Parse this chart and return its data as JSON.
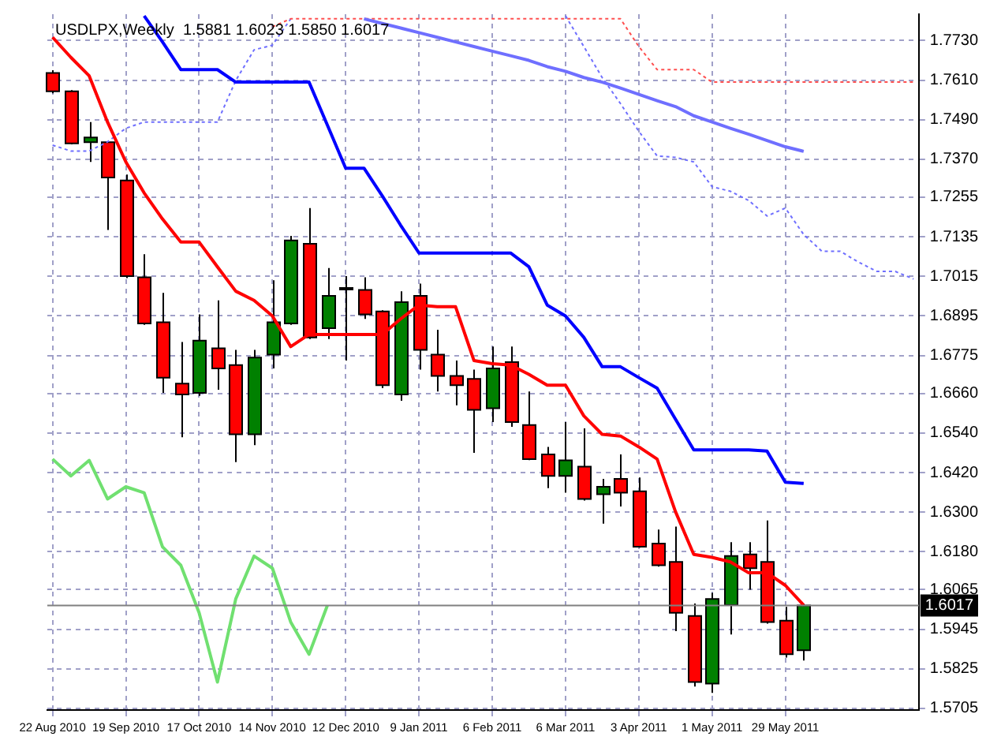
{
  "chart_data": {
    "type": "candlestick",
    "title": "USDLPX,Weekly  1.5881 1.6023 1.5850 1.6017",
    "x": [
      "2010-08-22",
      "2010-08-29",
      "2010-09-05",
      "2010-09-12",
      "2010-09-19",
      "2010-09-26",
      "2010-10-03",
      "2010-10-10",
      "2010-10-17",
      "2010-10-24",
      "2010-10-31",
      "2010-11-07",
      "2010-11-14",
      "2010-11-21",
      "2010-11-28",
      "2010-12-05",
      "2010-12-12",
      "2010-12-19",
      "2010-12-26",
      "2011-01-02",
      "2011-01-09",
      "2011-01-16",
      "2011-01-23",
      "2011-01-30",
      "2011-02-06",
      "2011-02-13",
      "2011-02-20",
      "2011-02-27",
      "2011-03-06",
      "2011-03-13",
      "2011-03-20",
      "2011-03-27",
      "2011-04-03",
      "2011-04-10",
      "2011-04-17",
      "2011-04-24",
      "2011-05-01",
      "2011-05-08",
      "2011-05-15",
      "2011-05-22",
      "2011-05-29",
      "2011-06-05"
    ],
    "ohlc": [
      [
        1.7632,
        1.764,
        1.757,
        1.7576
      ],
      [
        1.7576,
        1.758,
        1.7415,
        1.7418
      ],
      [
        1.7422,
        1.7483,
        1.7362,
        1.7436
      ],
      [
        1.7422,
        1.7425,
        1.7156,
        1.7315
      ],
      [
        1.7306,
        1.7324,
        1.701,
        1.7016
      ],
      [
        1.7012,
        1.7082,
        1.6868,
        1.6872
      ],
      [
        1.6876,
        1.6965,
        1.6662,
        1.6708
      ],
      [
        1.669,
        1.6816,
        1.6527,
        1.6657
      ],
      [
        1.6662,
        1.69,
        1.6653,
        1.682
      ],
      [
        1.6797,
        1.6942,
        1.6671,
        1.6736
      ],
      [
        1.6746,
        1.6792,
        1.6452,
        1.6536
      ],
      [
        1.6536,
        1.6792,
        1.6503,
        1.6769
      ],
      [
        1.6778,
        1.7003,
        1.6736,
        1.6876
      ],
      [
        1.6872,
        1.7138,
        1.6868,
        1.7124
      ],
      [
        1.7114,
        1.7222,
        1.6825,
        1.683
      ],
      [
        1.6858,
        1.704,
        1.6825,
        1.6956
      ],
      [
        1.698,
        1.7016,
        1.676,
        1.6979
      ],
      [
        1.6974,
        1.7012,
        1.6886,
        1.69
      ],
      [
        1.6909,
        1.6912,
        1.6676,
        1.6685
      ],
      [
        1.6657,
        1.697,
        1.6638,
        1.6937
      ],
      [
        1.6956,
        1.6993,
        1.6732,
        1.6792
      ],
      [
        1.6778,
        1.6853,
        1.6666,
        1.6713
      ],
      [
        1.6713,
        1.676,
        1.6624,
        1.6685
      ],
      [
        1.6704,
        1.6732,
        1.648,
        1.661
      ],
      [
        1.6615,
        1.6802,
        1.6573,
        1.6736
      ],
      [
        1.6755,
        1.6802,
        1.6559,
        1.6573
      ],
      [
        1.6564,
        1.6666,
        1.6458,
        1.6461
      ],
      [
        1.6475,
        1.6498,
        1.6373,
        1.641
      ],
      [
        1.641,
        1.6573,
        1.6359,
        1.6457
      ],
      [
        1.6438,
        1.6554,
        1.6335,
        1.634
      ],
      [
        1.6354,
        1.6401,
        1.6265,
        1.6377
      ],
      [
        1.6401,
        1.6475,
        1.6317,
        1.6359
      ],
      [
        1.6363,
        1.6405,
        1.6192,
        1.6195
      ],
      [
        1.6205,
        1.6247,
        1.6135,
        1.6139
      ],
      [
        1.6149,
        1.6256,
        1.5939,
        1.5995
      ],
      [
        1.5985,
        1.6023,
        1.5771,
        1.5785
      ],
      [
        1.578,
        1.6055,
        1.5752,
        1.6037
      ],
      [
        1.6018,
        1.6209,
        1.5929,
        1.6167
      ],
      [
        1.6172,
        1.6209,
        1.6065,
        1.613
      ],
      [
        1.6149,
        1.6275,
        1.5962,
        1.5967
      ],
      [
        1.5971,
        1.6013,
        1.5859,
        1.5869
      ],
      [
        1.5881,
        1.6023,
        1.585,
        1.6017
      ]
    ],
    "colors": [
      "#ff0000",
      "#ff0000",
      "#008000",
      "#ff0000",
      "#ff0000",
      "#ff0000",
      "#ff0000",
      "#ff0000",
      "#008000",
      "#ff0000",
      "#ff0000",
      "#008000",
      "#008000",
      "#008000",
      "#ff0000",
      "#008000",
      "#ff0000",
      "#ff0000",
      "#ff0000",
      "#008000",
      "#ff0000",
      "#ff0000",
      "#ff0000",
      "#ff0000",
      "#008000",
      "#ff0000",
      "#ff0000",
      "#ff0000",
      "#008000",
      "#ff0000",
      "#008000",
      "#ff0000",
      "#ff0000",
      "#ff0000",
      "#ff0000",
      "#ff0000",
      "#008000",
      "#008000",
      "#ff0000",
      "#ff0000",
      "#ff0000",
      "#008000"
    ],
    "series": [
      {
        "type": "line",
        "color": "#ff0000",
        "line_style": "solid",
        "values": [
          1.774,
          1.7679,
          1.7623,
          1.7483,
          1.7362,
          1.7268,
          1.7189,
          1.7119,
          1.7119,
          1.7044,
          1.697,
          1.6942,
          1.6895,
          1.6802,
          1.6839,
          1.6839,
          1.6839,
          1.6839,
          1.6839,
          1.6886,
          1.6928,
          1.6923,
          1.6923,
          1.676,
          1.675,
          1.6746,
          1.6718,
          1.6685,
          1.6685,
          1.6592,
          1.6536,
          1.6531,
          1.6498,
          1.6461,
          1.6302,
          1.6172,
          1.6163,
          1.6149,
          1.6116,
          1.6116,
          1.6078,
          1.6018
        ]
      },
      {
        "type": "line",
        "color": "#0000ff",
        "line_style": "solid",
        "values": [
          null,
          null,
          null,
          null,
          null,
          1.7805,
          1.7726,
          1.7642,
          1.7642,
          1.7642,
          1.7604,
          1.7604,
          1.7604,
          1.7604,
          1.7604,
          1.7474,
          1.7343,
          1.7343,
          1.7259,
          1.717,
          1.7086,
          1.7086,
          1.7086,
          1.7086,
          1.7086,
          1.7086,
          1.7044,
          1.6928,
          1.6895,
          1.683,
          1.6741,
          1.6741,
          1.6708,
          1.6676,
          1.6582,
          1.6489,
          1.6489,
          1.6489,
          1.6489,
          1.6485,
          1.6391,
          1.6387
        ]
      },
      {
        "type": "line",
        "color": "#6f6fff",
        "line_style": "solid",
        "values": [
          null,
          null,
          null,
          null,
          null,
          null,
          null,
          null,
          null,
          null,
          null,
          null,
          null,
          null,
          null,
          null,
          null,
          1.7796,
          1.7782,
          1.7768,
          1.7754,
          1.774,
          1.7726,
          1.7712,
          1.7698,
          1.7684,
          1.767,
          1.7651,
          1.7637,
          1.7618,
          1.7604,
          1.7586,
          1.7567,
          1.7548,
          1.753,
          1.7502,
          1.7483,
          1.7464,
          1.7446,
          1.7427,
          1.7408,
          1.7394
        ]
      },
      {
        "type": "line",
        "color": "#ff5050",
        "line_style": "dotted",
        "x": [
          "2010-11-14",
          "2010-11-21",
          "2010-11-28",
          "2010-12-05",
          "2010-12-12",
          "2010-12-19",
          "2010-12-26",
          "2011-01-02",
          "2011-01-09",
          "2011-01-16",
          "2011-01-23",
          "2011-01-30",
          "2011-02-06",
          "2011-02-13",
          "2011-02-20",
          "2011-02-27",
          "2011-03-06",
          "2011-03-13",
          "2011-03-20",
          "2011-03-27",
          "2011-04-03",
          "2011-04-10",
          "2011-04-17",
          "2011-04-24",
          "2011-05-01",
          "2011-05-08",
          "2011-05-15",
          "2011-05-22",
          "2011-05-29",
          "2011-06-05",
          "2011-06-12",
          "2011-06-19",
          "2011-06-26",
          "2011-07-03",
          "2011-07-10",
          "2011-07-17"
        ],
        "values": [
          1.7772,
          1.7796,
          1.7796,
          1.7796,
          1.7796,
          1.7796,
          1.7796,
          1.7796,
          1.7796,
          1.7796,
          1.7796,
          1.7796,
          1.7796,
          1.7796,
          1.7796,
          1.7796,
          1.7796,
          1.7796,
          1.7796,
          1.7796,
          1.7712,
          1.7642,
          1.7642,
          1.7642,
          1.7604,
          1.7604,
          1.7604,
          1.7604,
          1.7604,
          1.7604,
          1.7604,
          1.7604,
          1.7604,
          1.7604,
          1.7604,
          1.7604
        ]
      },
      {
        "type": "line",
        "color": "#6f6fff",
        "line_style": "dotted",
        "x": [
          "2010-08-22",
          "2010-08-29",
          "2010-09-05",
          "2010-09-12",
          "2010-09-19",
          "2010-09-26",
          "2010-10-03",
          "2010-10-10",
          "2010-10-17",
          "2010-10-24",
          "2010-10-31",
          "2010-11-07",
          "2010-11-14",
          "2010-11-21",
          "2010-11-28",
          "2010-12-05",
          "2010-12-12",
          "2010-12-19",
          "2010-12-26",
          "2011-01-02",
          "2011-01-09",
          "2011-01-16",
          "2011-01-23",
          "2011-01-30",
          "2011-02-06",
          "2011-02-13",
          "2011-02-20",
          "2011-02-27",
          "2011-03-06",
          "2011-03-13",
          "2011-03-20",
          "2011-03-27",
          "2011-04-03",
          "2011-04-10",
          "2011-04-17",
          "2011-04-24",
          "2011-05-01",
          "2011-05-08",
          "2011-05-15",
          "2011-05-22",
          "2011-05-29",
          "2011-06-05",
          "2011-06-12",
          "2011-06-19",
          "2011-06-26",
          "2011-07-03",
          "2011-07-10",
          "2011-07-17"
        ],
        "values": [
          1.7413,
          1.7395,
          1.7395,
          1.7423,
          1.7464,
          1.7483,
          1.7483,
          1.7483,
          1.7483,
          1.7483,
          1.7609,
          1.7702,
          1.7716,
          1.7796,
          null,
          null,
          null,
          null,
          null,
          null,
          null,
          null,
          null,
          null,
          null,
          null,
          null,
          null,
          1.7805,
          1.7712,
          1.7618,
          1.7539,
          1.7455,
          1.738,
          1.7376,
          1.7362,
          1.7287,
          1.7273,
          1.7245,
          1.7198,
          1.7222,
          1.7142,
          1.7091,
          1.7091,
          1.7058,
          1.703,
          1.703,
          1.7007
        ]
      },
      {
        "type": "line",
        "color": "#70e070",
        "line_style": "solid",
        "x": [
          "2010-08-22",
          "2010-08-29",
          "2010-09-05",
          "2010-09-12",
          "2010-09-19",
          "2010-09-26",
          "2010-10-03",
          "2010-10-10",
          "2010-10-17",
          "2010-10-24",
          "2010-10-31",
          "2010-11-07",
          "2010-11-14",
          "2010-11-21",
          "2010-11-28",
          "2010-12-05"
        ],
        "values": [
          1.6461,
          1.641,
          1.6457,
          1.634,
          1.6377,
          1.6359,
          1.6195,
          1.6139,
          1.5995,
          1.5785,
          1.6037,
          1.6167,
          1.613,
          1.5967,
          1.5869,
          1.6017
        ]
      }
    ],
    "xlim": [
      "2010-08-20",
      "2011-07-19"
    ],
    "xticks": [
      {
        "value": "2010-08-22",
        "label": "22 Aug 2010"
      },
      {
        "value": "2010-09-19",
        "label": "19 Sep 2010"
      },
      {
        "value": "2010-10-17",
        "label": "17 Oct 2010"
      },
      {
        "value": "2010-11-14",
        "label": "14 Nov 2010"
      },
      {
        "value": "2010-12-12",
        "label": "12 Dec 2010"
      },
      {
        "value": "2011-01-09",
        "label": "9 Jan 2011"
      },
      {
        "value": "2011-02-06",
        "label": "6 Feb 2011"
      },
      {
        "value": "2011-03-06",
        "label": "6 Mar 2011"
      },
      {
        "value": "2011-04-03",
        "label": "3 Apr 2011"
      },
      {
        "value": "2011-05-01",
        "label": "1 May 2011"
      },
      {
        "value": "2011-05-29",
        "label": "29 May 2011"
      }
    ],
    "ylim": [
      1.57,
      1.781
    ],
    "yticks": [
      {
        "value": 1.5705,
        "label": "1.5705"
      },
      {
        "value": 1.5825,
        "label": "1.5825"
      },
      {
        "value": 1.5945,
        "label": "1.5945"
      },
      {
        "value": 1.6065,
        "label": "1.6065"
      },
      {
        "value": 1.618,
        "label": "1.6180"
      },
      {
        "value": 1.63,
        "label": "1.6300"
      },
      {
        "value": 1.642,
        "label": "1.6420"
      },
      {
        "value": 1.654,
        "label": "1.6540"
      },
      {
        "value": 1.666,
        "label": "1.6660"
      },
      {
        "value": 1.6775,
        "label": "1.6775"
      },
      {
        "value": 1.6895,
        "label": "1.6895"
      },
      {
        "value": 1.7015,
        "label": "1.7015"
      },
      {
        "value": 1.7135,
        "label": "1.7135"
      },
      {
        "value": 1.7255,
        "label": "1.7255"
      },
      {
        "value": 1.737,
        "label": "1.7370"
      },
      {
        "value": 1.749,
        "label": "1.7490"
      },
      {
        "value": 1.761,
        "label": "1.7610"
      },
      {
        "value": 1.773,
        "label": "1.7730"
      }
    ],
    "ref_lines": [
      {
        "axis": "y",
        "value": 1.6017,
        "label": "1.6017",
        "color": "#808080"
      }
    ],
    "grid": true,
    "legend": false,
    "marker": "none"
  }
}
